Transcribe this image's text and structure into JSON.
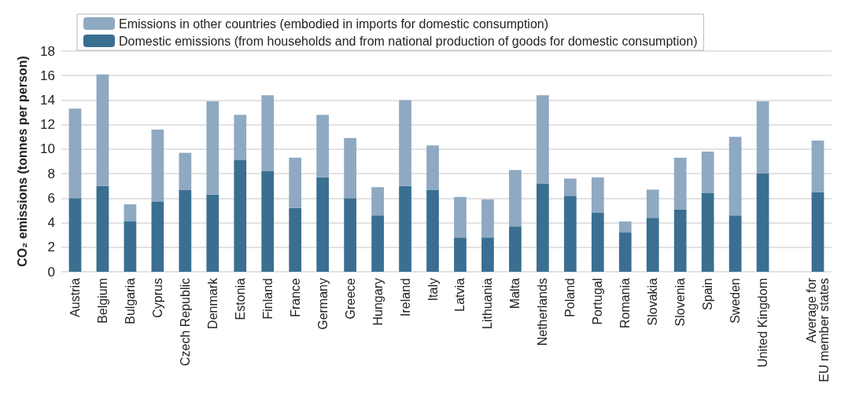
{
  "chart_data": {
    "type": "bar",
    "stacked": true,
    "ylabel": "CO₂ emissions (tonnes per person)",
    "categories": [
      "Austria",
      "Belgium",
      "Bulgaria",
      "Cyprus",
      "Czech Republic",
      "Denmark",
      "Estonia",
      "Finland",
      "France",
      "Germany",
      "Greece",
      "Hungary",
      "Ireland",
      "Italy",
      "Latvia",
      "Lithuania",
      "Malta",
      "Netherlands",
      "Poland",
      "Portugal",
      "Romania",
      "Slovakia",
      "Slovenia",
      "Spain",
      "Sweden",
      "United Kingdom",
      null,
      "Average for\nEU member states"
    ],
    "series": [
      {
        "name": "Domestic emissions (from households and from national production of goods for domestic consumption)",
        "color": "#3a6f91",
        "values": [
          6.0,
          7.0,
          4.1,
          5.7,
          6.7,
          6.3,
          9.1,
          8.2,
          5.2,
          7.7,
          6.0,
          4.6,
          7.0,
          6.7,
          2.8,
          2.8,
          3.7,
          7.2,
          6.2,
          4.8,
          3.2,
          4.4,
          5.1,
          6.4,
          4.6,
          8.0,
          null,
          6.5
        ]
      },
      {
        "name": "Emissions in other countries (embodied in imports for domestic consumption)",
        "color": "#8ea9c1",
        "values": [
          7.3,
          9.1,
          1.4,
          5.9,
          3.0,
          7.6,
          3.7,
          6.2,
          4.1,
          5.1,
          4.9,
          2.3,
          7.0,
          3.6,
          3.3,
          3.1,
          4.6,
          7.2,
          1.4,
          2.9,
          0.9,
          2.3,
          4.2,
          3.4,
          6.4,
          5.9,
          null,
          4.2
        ]
      }
    ],
    "ylim": [
      0,
      18
    ],
    "yticks": [
      0,
      2,
      4,
      6,
      8,
      10,
      12,
      14,
      16,
      18
    ],
    "grid": "y",
    "legend": "top"
  }
}
